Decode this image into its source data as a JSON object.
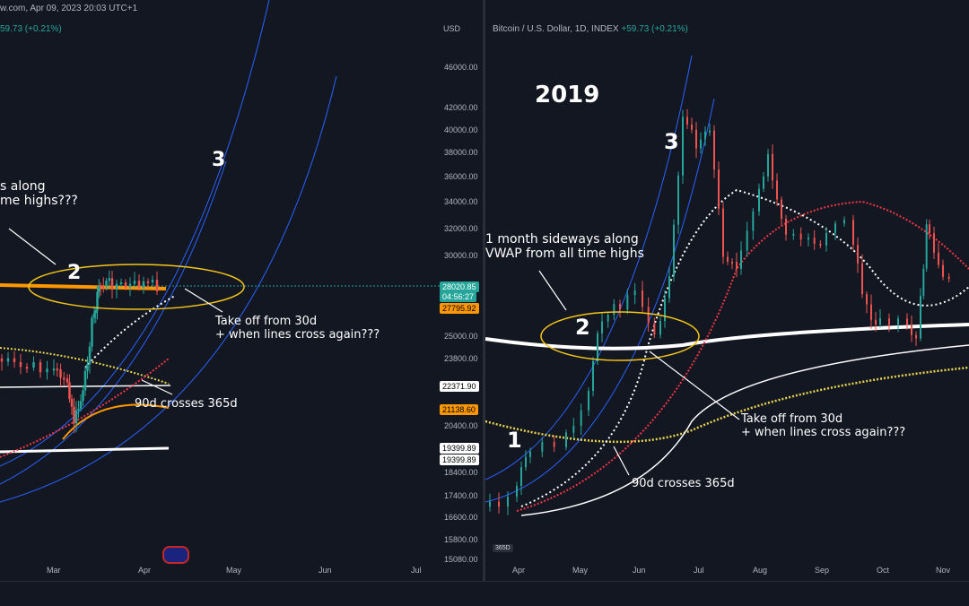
{
  "left": {
    "header_text": "w.com, Apr 09, 2023 20:03 UTC+1",
    "change_text": "59.73 (+0.21%)",
    "currency": "USD",
    "price_axis": [
      "46000.00",
      "42000.00",
      "40000.00",
      "38000.00",
      "36000.00",
      "34000.00",
      "32000.00",
      "30000.00",
      "25000.00",
      "23800.00",
      "20400.00",
      "18400.00",
      "17400.00",
      "16600.00",
      "15800.00",
      "15080.00"
    ],
    "price_tags": [
      {
        "text": "28020.85",
        "bg": "#26a69a"
      },
      {
        "text": "04:56:27",
        "bg": "#26a69a"
      },
      {
        "text": "27795.92",
        "bg": "#ff9800"
      },
      {
        "text": "22371.90",
        "bg": "#ffffff"
      },
      {
        "text": "21138.60",
        "bg": "#ff9800"
      },
      {
        "text": "19399.89",
        "bg": "#ffffff"
      },
      {
        "text": "19399.89",
        "bg": "#ffffff"
      }
    ],
    "time_axis": [
      "Mar",
      "Apr",
      "May",
      "Jun",
      "Jul"
    ],
    "annotations": {
      "partial_1": "s along\nme highs???",
      "num_3": "3",
      "num_2": "2",
      "takeoff": "Take off from 30d\n+ when lines cross again???",
      "cross": "90d crosses 365d"
    }
  },
  "right": {
    "header_text": "Bitcoin / U.S. Dollar, 1D, INDEX",
    "change_text": "+59.73 (+0.21%)",
    "year_label": "2019",
    "time_axis": [
      "Apr",
      "May",
      "Jun",
      "Jul",
      "Aug",
      "Sep",
      "Oct",
      "Nov"
    ],
    "badge": "365D",
    "annotations": {
      "num_1": "1",
      "num_2": "2",
      "num_3": "3",
      "sideways": "1 month sideways along\nVWAP from all time highs",
      "takeoff": "Take off from 30d\n+ when lines cross again???",
      "cross": "90d crosses 365d"
    }
  },
  "colors": {
    "background": "#131722",
    "up": "#26a69a",
    "down": "#ef5350",
    "vwap": "#ffffff",
    "ma_red": "#f23645",
    "ma_yellow": "#e8d44d",
    "ma_orange": "#ff9800",
    "arc": "#2962ff",
    "ellipse": "#f5c518"
  }
}
